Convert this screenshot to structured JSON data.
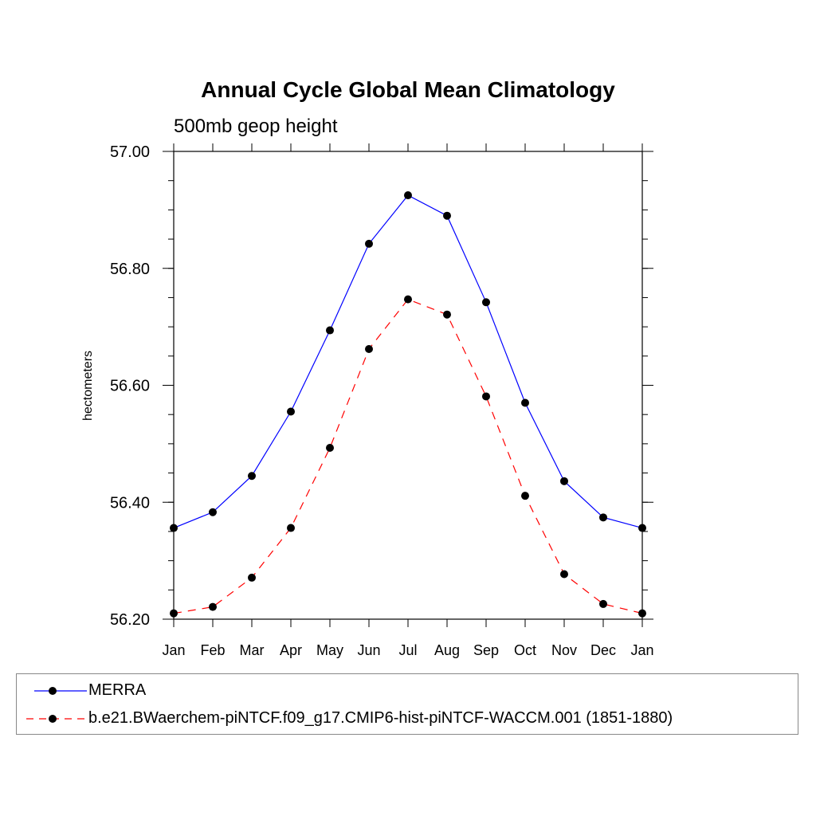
{
  "chart_data": {
    "type": "line",
    "title": "Annual Cycle Global Mean Climatology",
    "subtitle": "500mb geop height",
    "xlabel": "",
    "ylabel": "hectometers",
    "categories": [
      "Jan",
      "Feb",
      "Mar",
      "Apr",
      "May",
      "Jun",
      "Jul",
      "Aug",
      "Sep",
      "Oct",
      "Nov",
      "Dec",
      "Jan"
    ],
    "ylim": [
      56.2,
      57.0
    ],
    "yticks": [
      "56.20",
      "56.40",
      "56.60",
      "56.80",
      "57.00"
    ],
    "series": [
      {
        "name": "MERRA",
        "color": "#0000ff",
        "dash": "solid",
        "values": [
          56.356,
          56.383,
          56.445,
          56.555,
          56.694,
          56.842,
          56.925,
          56.89,
          56.742,
          56.57,
          56.436,
          56.374,
          56.356
        ]
      },
      {
        "name": "b.e21.BWaerchem-piNTCF.f09_g17.CMIP6-hist-piNTCF-WACCM.001 (1851-1880)",
        "color": "#ff0000",
        "dash": "dashed",
        "values": [
          56.21,
          56.221,
          56.271,
          56.356,
          56.493,
          56.662,
          56.747,
          56.721,
          56.581,
          56.411,
          56.277,
          56.226,
          56.21
        ]
      }
    ],
    "legend_position": "bottom"
  }
}
